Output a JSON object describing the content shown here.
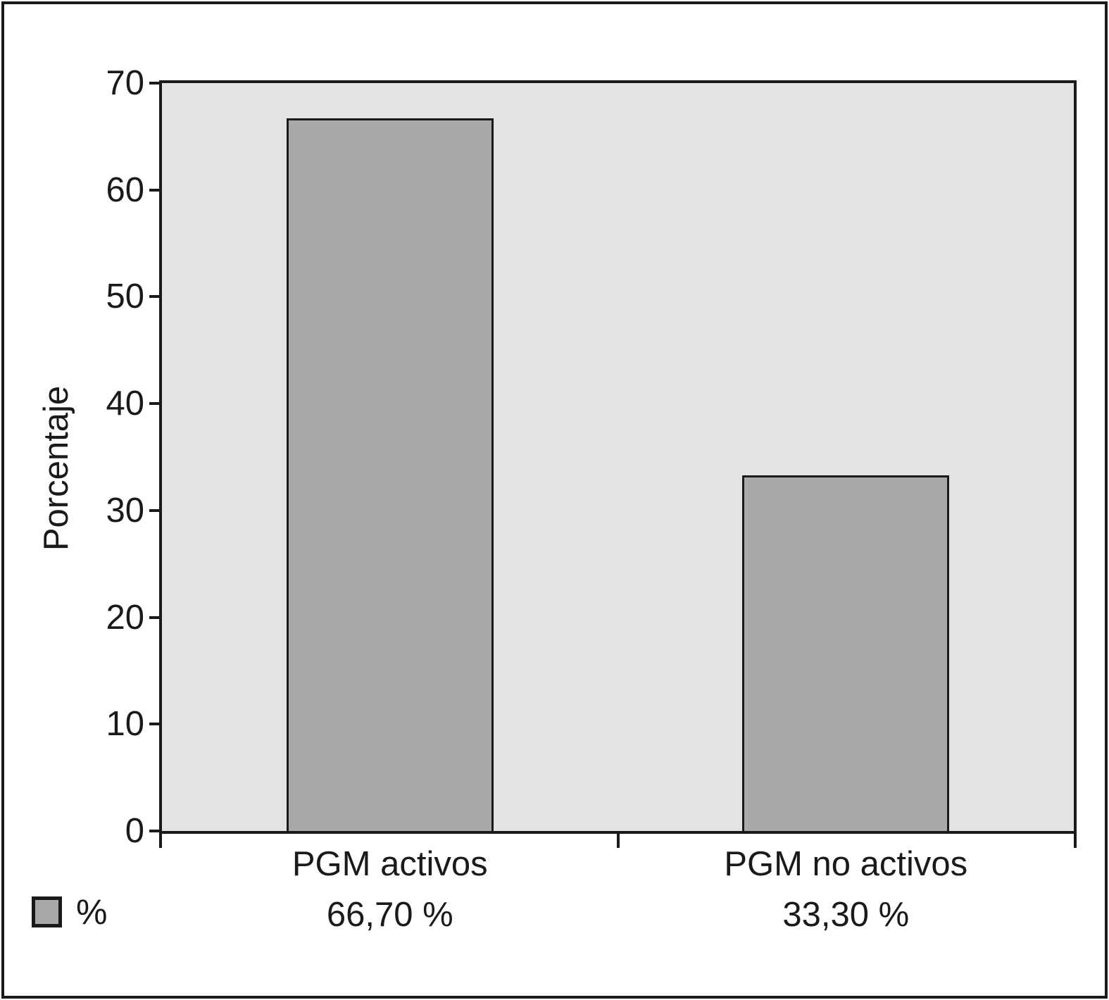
{
  "figure": {
    "background": "#ffffff",
    "frame_color": "#1a1a1a",
    "plot_background": "#e3e3e3",
    "bar_fill": "#a9a9a9",
    "bar_border": "#1a1a1a",
    "text_color": "#1a1a1a"
  },
  "chart_data": {
    "type": "bar",
    "title": "",
    "xlabel": "",
    "ylabel": "Porcentaje",
    "ylim": [
      0,
      70
    ],
    "yticks": [
      0,
      10,
      20,
      30,
      40,
      50,
      60,
      70
    ],
    "grid": false,
    "categories": [
      "PGM activos",
      "PGM no activos"
    ],
    "values": [
      66.7,
      33.3
    ],
    "value_labels": [
      "66,70 %",
      "33,30 %"
    ],
    "legend": {
      "position": "bottom-left",
      "entries": [
        {
          "label": "%",
          "swatch_color": "#a9a9a9"
        }
      ]
    }
  }
}
